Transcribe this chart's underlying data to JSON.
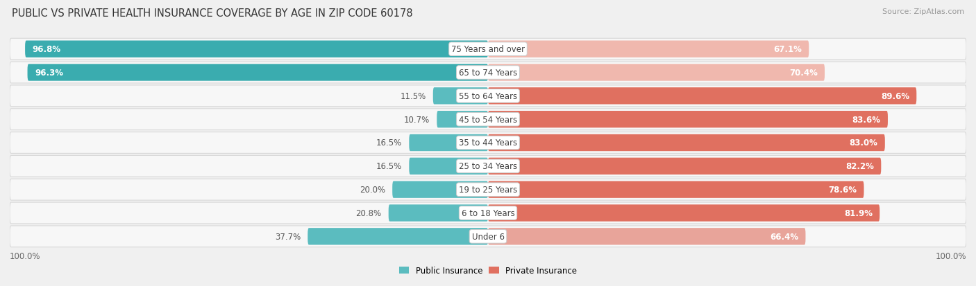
{
  "title": "PUBLIC VS PRIVATE HEALTH INSURANCE COVERAGE BY AGE IN ZIP CODE 60178",
  "source": "Source: ZipAtlas.com",
  "categories": [
    "Under 6",
    "6 to 18 Years",
    "19 to 25 Years",
    "25 to 34 Years",
    "35 to 44 Years",
    "45 to 54 Years",
    "55 to 64 Years",
    "65 to 74 Years",
    "75 Years and over"
  ],
  "public_values": [
    37.7,
    20.8,
    20.0,
    16.5,
    16.5,
    10.7,
    11.5,
    96.3,
    96.8
  ],
  "private_values": [
    66.4,
    81.9,
    78.6,
    82.2,
    83.0,
    83.6,
    89.6,
    70.4,
    67.1
  ],
  "public_colors": [
    "#5bbcbf",
    "#5bbcbf",
    "#5bbcbf",
    "#5bbcbf",
    "#5bbcbf",
    "#5bbcbf",
    "#5bbcbf",
    "#3aacaf",
    "#3aacaf"
  ],
  "private_colors": [
    "#e8a49a",
    "#e07060",
    "#e07060",
    "#e07060",
    "#e07060",
    "#e07060",
    "#e07060",
    "#f0b8ae",
    "#f0b8ae"
  ],
  "bg_color": "#f0f0f0",
  "row_bg_color": "#f7f7f7",
  "row_border_color": "#d8d8d8",
  "title_fontsize": 10.5,
  "label_fontsize": 8.5,
  "value_fontsize": 8.5,
  "legend_fontsize": 8.5,
  "axis_label": "100.0%"
}
